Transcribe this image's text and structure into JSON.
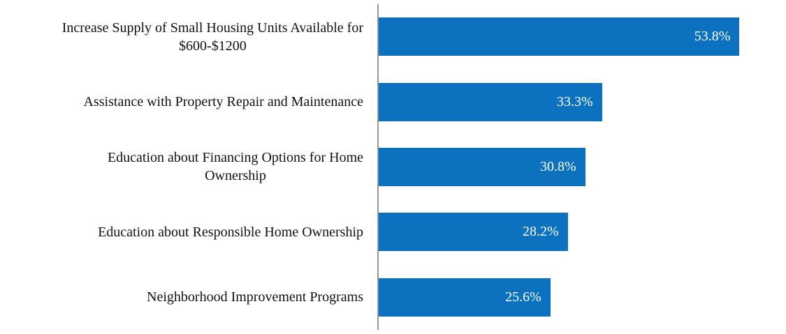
{
  "chart_data": {
    "type": "bar",
    "orientation": "horizontal",
    "title": "",
    "xlabel": "",
    "ylabel": "",
    "categories": [
      "Increase Supply of Small Housing Units Available for\n$600-$1200",
      "Assistance with Property Repair and Maintenance",
      "Education about Financing Options for Home\nOwnership",
      "Education about Responsible Home Ownership",
      "Neighborhood Improvement Programs"
    ],
    "values": [
      53.8,
      33.3,
      30.8,
      28.2,
      25.6
    ],
    "value_labels": [
      "53.8%",
      "33.3%",
      "30.8%",
      "28.2%",
      "25.6%"
    ],
    "xlim": [
      0,
      60.5
    ],
    "grid": false,
    "legend": "none",
    "value_label_position": "inside-end",
    "bar_color": "#0c72c0",
    "axis_line_color": "#969696",
    "category_label_color": "#111111",
    "value_label_color": "#ffffff"
  }
}
